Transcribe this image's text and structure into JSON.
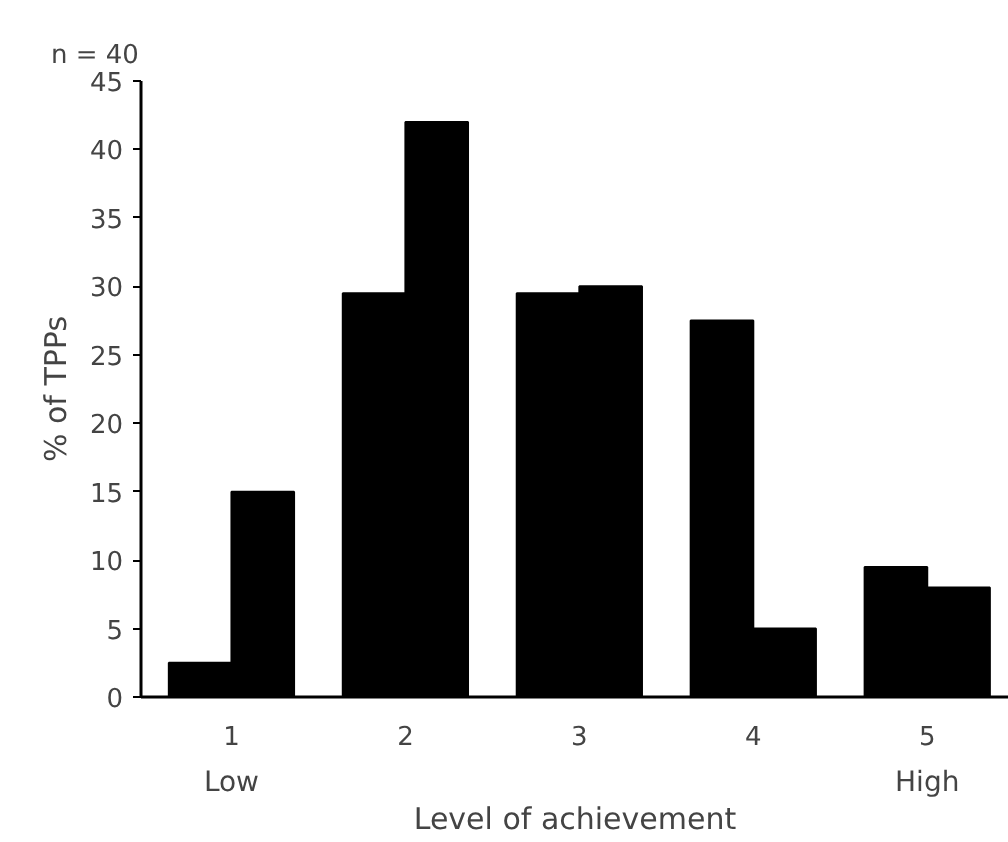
{
  "chart_data": {
    "type": "bar",
    "title": "n = 40",
    "xlabel": "Level of achievement",
    "ylabel": "% of TPPs",
    "categories": [
      "1",
      "2",
      "3",
      "4",
      "5"
    ],
    "series": [
      {
        "color": "#000000",
        "values": [
          2.5,
          29.5,
          29.5,
          27.5,
          9.5
        ]
      },
      {
        "color": "#000000",
        "values": [
          15,
          42,
          30,
          5,
          8
        ]
      }
    ],
    "ylim": [
      0,
      45
    ],
    "yticks": [
      0,
      5,
      10,
      15,
      20,
      25,
      30,
      35,
      40,
      45
    ],
    "grid": false,
    "annotations": [
      "Low",
      "High"
    ]
  }
}
